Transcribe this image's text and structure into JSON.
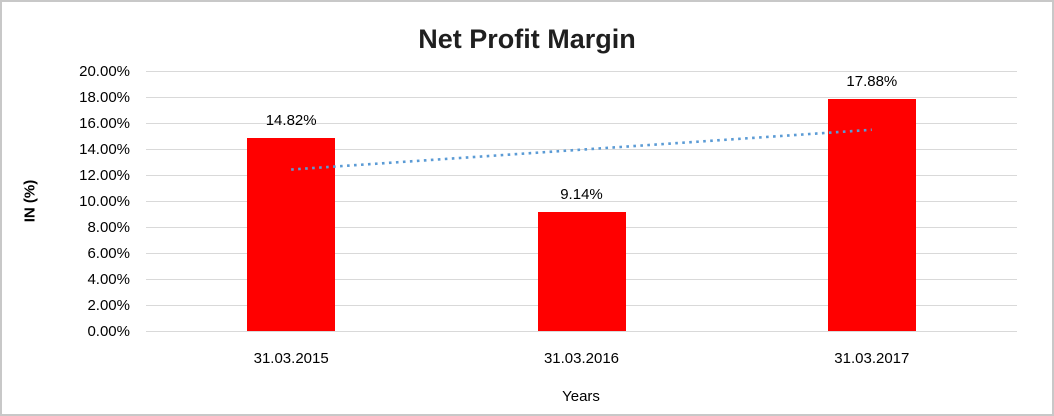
{
  "chart_data": {
    "type": "bar",
    "title": "Net Profit Margin",
    "categories": [
      "31.03.2015",
      "31.03.2016",
      "31.03.2017"
    ],
    "values": [
      14.82,
      9.14,
      17.88
    ],
    "data_labels": [
      "14.82%",
      "9.14%",
      "17.88%"
    ],
    "xlabel": "Years",
    "ylabel": "IN (%)",
    "ylim": [
      0,
      20
    ],
    "ytick_step": 2,
    "ytick_labels": [
      "0.00%",
      "2.00%",
      "4.00%",
      "6.00%",
      "8.00%",
      "10.00%",
      "12.00%",
      "14.00%",
      "16.00%",
      "18.00%",
      "20.00%"
    ],
    "grid": true,
    "legend": "none",
    "trendline": {
      "type": "linear",
      "style": "dotted",
      "start_value": 12.42,
      "end_value": 15.48
    },
    "colors": {
      "bar": "#ff0000",
      "trendline": "#5b9bd5",
      "gridline": "#d9d9d9",
      "title_text": "#1f1f1f",
      "axis_text": "#000000",
      "frame_border": "#c8c8c8"
    }
  }
}
